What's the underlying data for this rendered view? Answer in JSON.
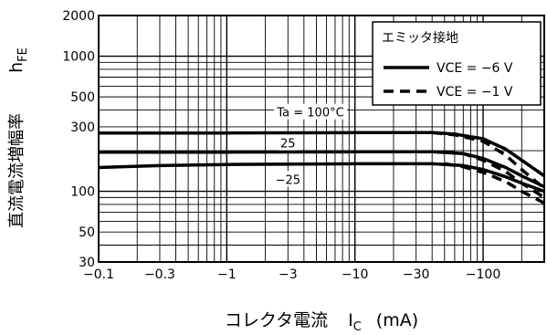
{
  "chart_data": {
    "type": "line",
    "xlabel": "コレクタ電流",
    "xlabel_symbol": "I",
    "xlabel_sub": "C",
    "xlabel_unit": "(mA)",
    "ylabel": "直流電流増幅率",
    "ylabel_symbol": "h",
    "ylabel_sub": "FE",
    "x_scale": "log",
    "y_scale": "log",
    "x_tick_labels": [
      "−0.1",
      "−0.3",
      "−1",
      "−3",
      "−10",
      "−30",
      "−100"
    ],
    "y_tick_labels": [
      "30",
      "50",
      "100",
      "300",
      "500",
      "1000",
      "2000"
    ],
    "ylim": [
      30,
      2000
    ],
    "xlim": [
      -0.1,
      -300
    ],
    "legend": {
      "title": "エミッタ接地",
      "items": [
        {
          "label": "VCE = −6 V",
          "style": "solid"
        },
        {
          "label": "VCE = −1 V",
          "style": "dashed"
        }
      ],
      "position": "top-right"
    },
    "annotations": [
      "Ta = 100°C",
      "25",
      "−25"
    ],
    "series": [
      {
        "name": "Ta = 100°C",
        "style": "solid",
        "x": [
          -0.1,
          -1,
          -10,
          -40,
          -60,
          -100,
          -150,
          -200,
          -300
        ],
        "y": [
          270,
          270,
          272,
          272,
          265,
          245,
          205,
          170,
          130
        ]
      },
      {
        "name": "25",
        "style": "solid",
        "x": [
          -0.1,
          -1,
          -10,
          -40,
          -70,
          -100,
          -150,
          -200,
          -300
        ],
        "y": [
          195,
          195,
          196,
          196,
          190,
          175,
          150,
          130,
          108
        ]
      },
      {
        "name": "−25",
        "style": "solid",
        "x": [
          -0.1,
          -0.3,
          -1,
          -10,
          -40,
          -70,
          -100,
          -150,
          -200,
          -300
        ],
        "y": [
          150,
          155,
          158,
          160,
          160,
          155,
          145,
          128,
          115,
          100
        ]
      },
      {
        "name": "Ta = 100°C",
        "style": "dashed",
        "x": [
          -40,
          -60,
          -100,
          -150,
          -200,
          -300
        ],
        "y": [
          272,
          262,
          235,
          185,
          145,
          105
        ]
      },
      {
        "name": "25",
        "style": "dashed",
        "x": [
          -50,
          -70,
          -100,
          -150,
          -200,
          -300
        ],
        "y": [
          196,
          190,
          170,
          140,
          115,
          90
        ]
      },
      {
        "name": "−25",
        "style": "dashed",
        "x": [
          -50,
          -70,
          -100,
          -150,
          -200,
          -300
        ],
        "y": [
          160,
          152,
          138,
          118,
          100,
          82
        ]
      }
    ]
  }
}
